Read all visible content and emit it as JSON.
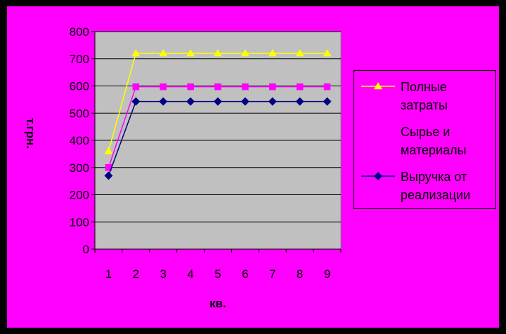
{
  "chart_data": {
    "type": "line",
    "title": "",
    "xlabel": "кв.",
    "ylabel": "т.грн.",
    "categories": [
      "1",
      "2",
      "3",
      "4",
      "5",
      "6",
      "7",
      "8",
      "9"
    ],
    "ylim": [
      0,
      800
    ],
    "yticks": [
      0,
      100,
      200,
      300,
      400,
      500,
      600,
      700,
      800
    ],
    "grid": true,
    "legend_position": "right",
    "plot_background": "#c0c0c0",
    "page_background": "#ff00ff",
    "series": [
      {
        "name": "Полные затраты",
        "color": "#ffff00",
        "marker": "triangle",
        "values": [
          360,
          720,
          720,
          720,
          720,
          720,
          720,
          720,
          720
        ]
      },
      {
        "name": "Сырье и материалы",
        "color": "#ff00ff",
        "marker": "square",
        "values": [
          300,
          597,
          597,
          597,
          597,
          597,
          597,
          597,
          597
        ]
      },
      {
        "name": "Выручка от реализации",
        "color": "#000080",
        "marker": "diamond",
        "values": [
          270,
          543,
          543,
          543,
          543,
          543,
          543,
          543,
          543
        ]
      }
    ]
  }
}
